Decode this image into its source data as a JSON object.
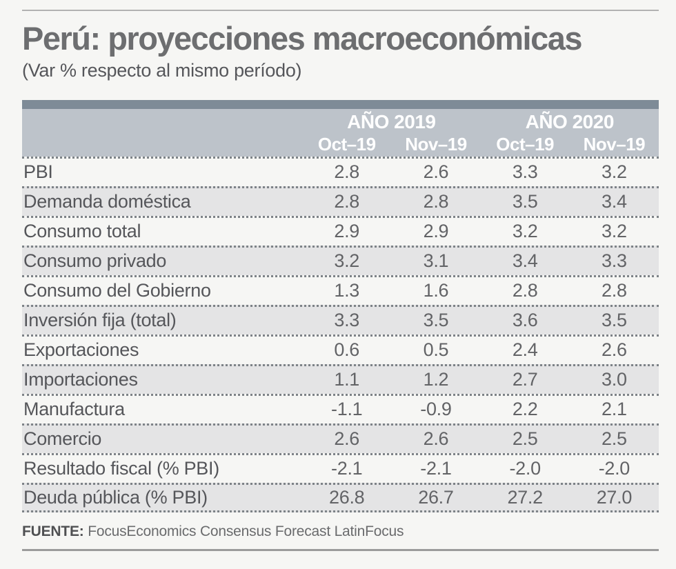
{
  "page": {
    "title": "Perú: proyecciones macroeconómicas",
    "subtitle": "(Var % respecto al mismo período)",
    "source_label": "FUENTE:",
    "source_text": "FocusEconomics Consensus Forecast LatinFocus"
  },
  "colors": {
    "header_strip": "#7e8b97",
    "header_bg": "#bdc3ca",
    "alt_row_bg": "#e4e4e5",
    "page_bg": "#f6f6f4",
    "title_text": "#6d6e70",
    "body_text": "#55565a",
    "header_text": "#ffffff",
    "dotted_separator": "#7d8287"
  },
  "table": {
    "year_groups": [
      {
        "label": "AÑO 2019"
      },
      {
        "label": "AÑO 2020"
      }
    ],
    "column_headers": [
      "Oct–19",
      "Nov–19",
      "Oct–19",
      "Nov–19"
    ],
    "rows": [
      {
        "label": "PBI",
        "values": [
          "2.8",
          "2.6",
          "3.3",
          "3.2"
        ]
      },
      {
        "label": "Demanda doméstica",
        "values": [
          "2.8",
          "2.8",
          "3.5",
          "3.4"
        ]
      },
      {
        "label": "Consumo total",
        "values": [
          "2.9",
          "2.9",
          "3.2",
          "3.2"
        ]
      },
      {
        "label": "Consumo privado",
        "values": [
          "3.2",
          "3.1",
          "3.4",
          "3.3"
        ]
      },
      {
        "label": "Consumo del Gobierno",
        "values": [
          "1.3",
          "1.6",
          "2.8",
          "2.8"
        ]
      },
      {
        "label": "Inversión fija (total)",
        "values": [
          "3.3",
          "3.5",
          "3.6",
          "3.5"
        ]
      },
      {
        "label": "Exportaciones",
        "values": [
          "0.6",
          "0.5",
          "2.4",
          "2.6"
        ]
      },
      {
        "label": "Importaciones",
        "values": [
          "1.1",
          "1.2",
          "2.7",
          "3.0"
        ]
      },
      {
        "label": "Manufactura",
        "values": [
          "-1.1",
          "-0.9",
          "2.2",
          "2.1"
        ]
      },
      {
        "label": "Comercio",
        "values": [
          "2.6",
          "2.6",
          "2.5",
          "2.5"
        ]
      },
      {
        "label": "Resultado fiscal (% PBI)",
        "values": [
          "-2.1",
          "-2.1",
          "-2.0",
          "-2.0"
        ]
      },
      {
        "label": "Deuda pública (% PBI)",
        "values": [
          "26.8",
          "26.7",
          "27.2",
          "27.0"
        ]
      }
    ]
  },
  "chart_data": {
    "type": "table",
    "title": "Perú: proyecciones macroeconómicas",
    "subtitle": "(Var % respecto al mismo período)",
    "column_groups": [
      "AÑO 2019",
      "AÑO 2019",
      "AÑO 2020",
      "AÑO 2020"
    ],
    "columns": [
      "Oct-19",
      "Nov-19",
      "Oct-19",
      "Nov-19"
    ],
    "rows": [
      {
        "label": "PBI",
        "values": [
          2.8,
          2.6,
          3.3,
          3.2
        ]
      },
      {
        "label": "Demanda doméstica",
        "values": [
          2.8,
          2.8,
          3.5,
          3.4
        ]
      },
      {
        "label": "Consumo total",
        "values": [
          2.9,
          2.9,
          3.2,
          3.2
        ]
      },
      {
        "label": "Consumo privado",
        "values": [
          3.2,
          3.1,
          3.4,
          3.3
        ]
      },
      {
        "label": "Consumo del Gobierno",
        "values": [
          1.3,
          1.6,
          2.8,
          2.8
        ]
      },
      {
        "label": "Inversión fija (total)",
        "values": [
          3.3,
          3.5,
          3.6,
          3.5
        ]
      },
      {
        "label": "Exportaciones",
        "values": [
          0.6,
          0.5,
          2.4,
          2.6
        ]
      },
      {
        "label": "Importaciones",
        "values": [
          1.1,
          1.2,
          2.7,
          3.0
        ]
      },
      {
        "label": "Manufactura",
        "values": [
          -1.1,
          -0.9,
          2.2,
          2.1
        ]
      },
      {
        "label": "Comercio",
        "values": [
          2.6,
          2.6,
          2.5,
          2.5
        ]
      },
      {
        "label": "Resultado fiscal (% PBI)",
        "values": [
          -2.1,
          -2.1,
          -2.0,
          -2.0
        ]
      },
      {
        "label": "Deuda pública (% PBI)",
        "values": [
          26.8,
          26.7,
          27.2,
          27.0
        ]
      }
    ],
    "source": "FUENTE: FocusEconomics Consensus Forecast LatinFocus"
  }
}
